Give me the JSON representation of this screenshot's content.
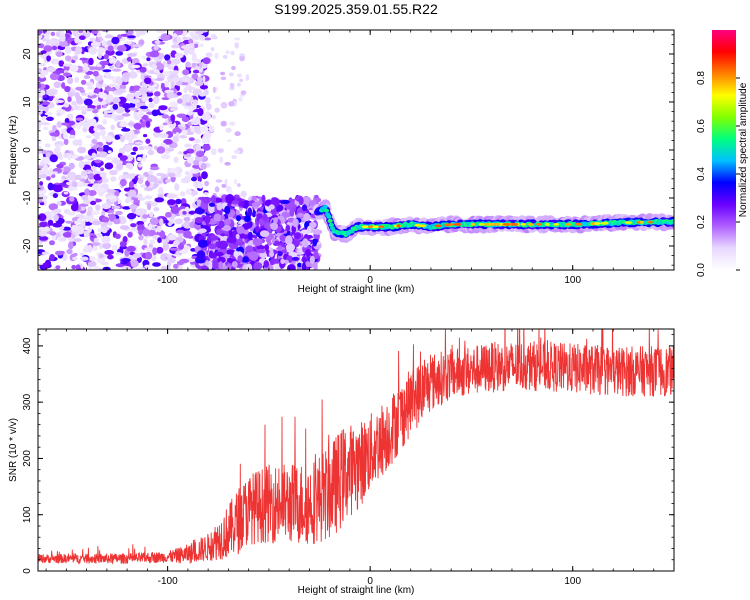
{
  "title": "S199.2025.359.01.55.R22",
  "chart_data": [
    {
      "type": "heatmap",
      "title": "S199.2025.359.01.55.R22",
      "xlabel": "Height of straight line (km)",
      "ylabel": "Frequency (Hz)",
      "xlim": [
        -164,
        150
      ],
      "ylim": [
        -25,
        25
      ],
      "xticks": [
        -100,
        0,
        100
      ],
      "xtick_labels": [
        "-100",
        "0",
        "100"
      ],
      "yticks": [
        -20,
        -10,
        0,
        10,
        20
      ],
      "ytick_labels": [
        "-20",
        "-10",
        "0",
        "10",
        "20"
      ],
      "colorbar": {
        "label": "Normalized spectral amplitude",
        "range": [
          0,
          1
        ],
        "ticks": [
          0.0,
          0.2,
          0.4,
          0.6,
          0.8
        ],
        "tick_labels": [
          "0.0",
          "0.2",
          "0.4",
          "0.6",
          "0.8"
        ],
        "colors": [
          "#ffffff",
          "#e8d8ff",
          "#b060ff",
          "#6a00ff",
          "#0000ff",
          "#00c0ff",
          "#00ff80",
          "#80ff00",
          "#ffff00",
          "#ff8000",
          "#ff0000",
          "#ff0080"
        ]
      },
      "signal_band": {
        "description": "narrow band near -15 Hz from about -25 km to 150 km",
        "frequency": [
          [
            -26,
            -13
          ],
          [
            -22,
            -12
          ],
          [
            -18,
            -17
          ],
          [
            -12,
            -17.5
          ],
          [
            -6,
            -16
          ],
          [
            0,
            -16
          ],
          [
            10,
            -16
          ],
          [
            20,
            -15.5
          ],
          [
            30,
            -16
          ],
          [
            40,
            -15.5
          ],
          [
            60,
            -15.5
          ],
          [
            80,
            -15.5
          ],
          [
            100,
            -15.5
          ],
          [
            120,
            -15.2
          ],
          [
            140,
            -15
          ],
          [
            150,
            -15
          ]
        ],
        "peak_amplitude": 0.85
      },
      "noise_region": {
        "x_range": [
          -164,
          -85
        ],
        "amplitude": 0.25
      },
      "transition_region": {
        "x_range": [
          -85,
          -26
        ],
        "frequency_range": [
          -25,
          -10
        ],
        "amplitude": 0.35
      }
    },
    {
      "type": "line",
      "xlabel": "Height of straight line (km)",
      "ylabel": "SNR (10 * v/v)",
      "xlim": [
        -164,
        150
      ],
      "ylim": [
        0,
        430
      ],
      "xticks": [
        -100,
        0,
        100
      ],
      "xtick_labels": [
        "-100",
        "0",
        "100"
      ],
      "yticks": [
        0,
        100,
        200,
        300,
        400
      ],
      "ytick_labels": [
        "0",
        "100",
        "200",
        "300",
        "400"
      ],
      "series": [
        {
          "name": "SNR",
          "color": "#ee3333",
          "trend": [
            [
              -164,
              22
            ],
            [
              -120,
              22
            ],
            [
              -100,
              25
            ],
            [
              -90,
              30
            ],
            [
              -80,
              42
            ],
            [
              -70,
              70
            ],
            [
              -65,
              90
            ],
            [
              -60,
              110
            ],
            [
              -50,
              120
            ],
            [
              -40,
              120
            ],
            [
              -30,
              120
            ],
            [
              -20,
              140
            ],
            [
              -12,
              175
            ],
            [
              -5,
              190
            ],
            [
              0,
              210
            ],
            [
              10,
              250
            ],
            [
              20,
              300
            ],
            [
              30,
              335
            ],
            [
              40,
              350
            ],
            [
              60,
              362
            ],
            [
              80,
              365
            ],
            [
              100,
              360
            ],
            [
              120,
              355
            ],
            [
              140,
              355
            ],
            [
              150,
              355
            ]
          ],
          "noise_amplitude": [
            [
              -164,
              8
            ],
            [
              -100,
              10
            ],
            [
              -80,
              25
            ],
            [
              -65,
              60
            ],
            [
              -50,
              70
            ],
            [
              -30,
              75
            ],
            [
              -15,
              90
            ],
            [
              0,
              70
            ],
            [
              20,
              60
            ],
            [
              40,
              45
            ],
            [
              150,
              45
            ]
          ]
        }
      ]
    }
  ]
}
